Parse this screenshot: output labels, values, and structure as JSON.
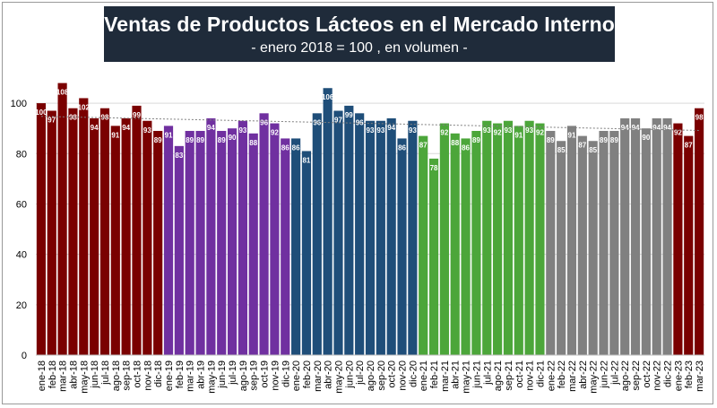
{
  "chart_data": {
    "type": "bar",
    "title": "Ventas de Productos Lácteos en el Mercado Interno",
    "subtitle": "- enero 2018 = 100 , en volumen -",
    "xlabel": "",
    "ylabel": "",
    "ylim": [
      0,
      110
    ],
    "yticks": [
      0,
      20,
      40,
      60,
      80,
      100
    ],
    "grid": true,
    "trendline": "dotted",
    "categories": [
      "ene-18",
      "feb-18",
      "mar-18",
      "abr-18",
      "may-18",
      "jun-18",
      "jul-18",
      "ago-18",
      "sep-18",
      "oct-18",
      "nov-18",
      "dic-18",
      "ene-19",
      "feb-19",
      "mar-19",
      "abr-19",
      "may-19",
      "jun-19",
      "jul-19",
      "ago-19",
      "sep-19",
      "oct-19",
      "nov-19",
      "dic-19",
      "ene-20",
      "feb-20",
      "mar-20",
      "abr-20",
      "may-20",
      "jun-20",
      "jul-20",
      "ago-20",
      "sep-20",
      "oct-20",
      "nov-20",
      "dic-20",
      "ene-21",
      "feb-21",
      "mar-21",
      "abr-21",
      "may-21",
      "jun-21",
      "jul-21",
      "ago-21",
      "sep-21",
      "oct-21",
      "nov-21",
      "dic-21",
      "ene-22",
      "feb-22",
      "mar-22",
      "abr-22",
      "may-22",
      "jun-22",
      "jul-22",
      "ago-22",
      "sep-22",
      "oct-22",
      "nov-22",
      "dic-22",
      "ene-23",
      "feb-23",
      "mar-23"
    ],
    "values": [
      100,
      97,
      108,
      98,
      102,
      94,
      98,
      91,
      94,
      99,
      93,
      89,
      91,
      83,
      89,
      89,
      94,
      89,
      90,
      93,
      88,
      96,
      92,
      86,
      86,
      81,
      96,
      106,
      97,
      99,
      96,
      93,
      93,
      94,
      86,
      93,
      87,
      78,
      92,
      88,
      86,
      89,
      93,
      92,
      93,
      91,
      93,
      92,
      89,
      85,
      91,
      87,
      85,
      89,
      89,
      94,
      94,
      90,
      94,
      94,
      92,
      87,
      98
    ],
    "year_colors": {
      "2018": "#7a0000",
      "2019": "#7030a0",
      "2020": "#1f4e79",
      "2021": "#4ca63a",
      "2022": "#808080",
      "2023": "#7a0000"
    }
  }
}
